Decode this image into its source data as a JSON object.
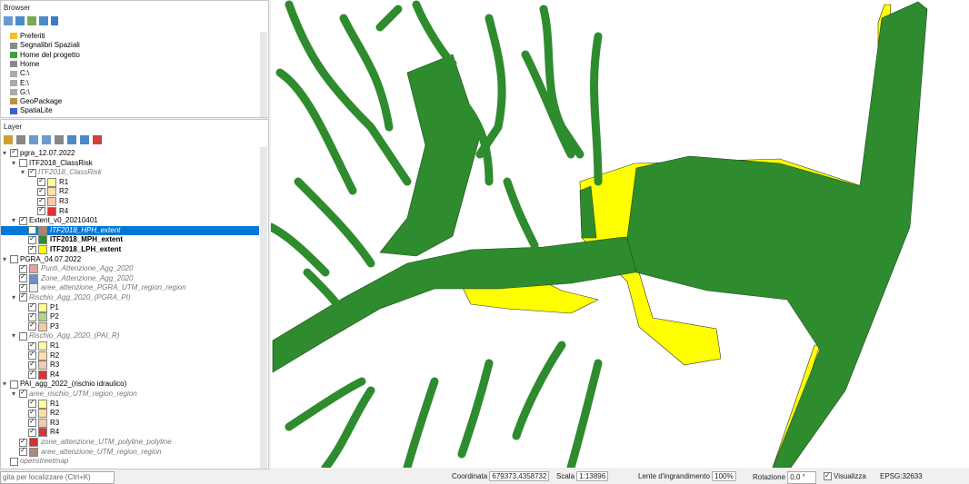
{
  "browser": {
    "title": "Browser",
    "items": [
      "Preferiti",
      "Segnalibri Spaziali",
      "Home del progetto",
      "Home",
      "C:\\",
      "E:\\",
      "G:\\",
      "GeoPackage",
      "SpatiaLite"
    ]
  },
  "layers": {
    "title": "Layer",
    "tree": [
      {
        "label": "pgra_12.07.2022",
        "checked": true,
        "children": [
          {
            "label": "ITF2018_ClassRisk",
            "checked": false,
            "children": [
              {
                "label": "ITF2018_ClassRisk",
                "checked": true,
                "style": "italic",
                "children": [
                  {
                    "label": "R1",
                    "checked": true,
                    "swatch": "#ffff99"
                  },
                  {
                    "label": "R2",
                    "checked": true,
                    "swatch": "#ffe0a0"
                  },
                  {
                    "label": "R3",
                    "checked": true,
                    "swatch": "#f7c9b0"
                  },
                  {
                    "label": "R4",
                    "checked": true,
                    "swatch": "#e03030"
                  }
                ]
              }
            ]
          },
          {
            "label": "Extent_v0_20210401",
            "checked": true,
            "children": [
              {
                "label": "ITF2018_HPH_extent",
                "checked": false,
                "style": "italic",
                "selected": true,
                "swatch": "#b08070"
              },
              {
                "label": "ITF2018_MPH_extent",
                "checked": true,
                "style": "bold",
                "swatch": "#2e8b2e"
              },
              {
                "label": "ITF2018_LPH_extent",
                "checked": true,
                "style": "bold",
                "swatch": "#ffff00"
              }
            ]
          }
        ]
      },
      {
        "label": "PGRA_04.07.2022",
        "checked": false,
        "children": [
          {
            "label": "Punti_Attenzione_Agg_2020",
            "checked": true,
            "style": "italic",
            "swatch": "#e8a0a0"
          },
          {
            "label": "Zone_Attenzione_Agg_2020",
            "checked": true,
            "style": "italic",
            "swatch": "#6a8fd0"
          },
          {
            "label": "aree_attenzione_PGRA_UTM_region_region",
            "checked": true,
            "style": "italic",
            "swatch": "#e8f0ff"
          },
          {
            "label": "Rischio_Agg_2020_(PGRA_PI)",
            "checked": true,
            "style": "italic",
            "children": [
              {
                "label": "P1",
                "checked": true,
                "swatch": "#ffff88"
              },
              {
                "label": "P2",
                "checked": true,
                "swatch": "#a8d890"
              },
              {
                "label": "P3",
                "checked": true,
                "swatch": "#f8c8a0"
              }
            ]
          },
          {
            "label": "Rischio_Agg_2020_(PAI_R)",
            "checked": false,
            "style": "italic",
            "children": [
              {
                "label": "R1",
                "checked": true,
                "swatch": "#ffff99"
              },
              {
                "label": "R2",
                "checked": true,
                "swatch": "#ffe0a0"
              },
              {
                "label": "R3",
                "checked": true,
                "swatch": "#f7c9b0"
              },
              {
                "label": "R4",
                "checked": true,
                "swatch": "#e03030"
              }
            ]
          }
        ]
      },
      {
        "label": "PAI_agg_2022_(rischio idraulico)",
        "checked": false,
        "children": [
          {
            "label": "aree_rischio_UTM_region_region",
            "checked": true,
            "style": "italic",
            "children": [
              {
                "label": "R1",
                "checked": true,
                "swatch": "#ffff99"
              },
              {
                "label": "R2",
                "checked": true,
                "swatch": "#ffe0a0"
              },
              {
                "label": "R3",
                "checked": true,
                "swatch": "#f7c9b0"
              },
              {
                "label": "R4",
                "checked": true,
                "swatch": "#e03030"
              }
            ]
          },
          {
            "label": "zone_attenzione_UTM_polyline_polyline",
            "checked": true,
            "style": "italic",
            "swatch": "#d03030"
          },
          {
            "label": "aree_attenzione_UTM_region_region",
            "checked": true,
            "style": "italic",
            "swatch": "#b08878"
          }
        ]
      },
      {
        "label": "openstreetmap",
        "checked": false,
        "style": "italic"
      }
    ]
  },
  "statusbar": {
    "search": "gita per localizzare (Ctrl+K)",
    "coordinate_label": "Coordinata",
    "coordinate": "679373,4358732",
    "scale_label": "Scala",
    "scale": "1:13896",
    "magnifier_label": "Lente d'ingrandimento",
    "magnifier": "100%",
    "rotation_label": "Rotazione",
    "rotation": "0,0 °",
    "render_label": "Visualizza",
    "crs": "EPSG:32633"
  }
}
